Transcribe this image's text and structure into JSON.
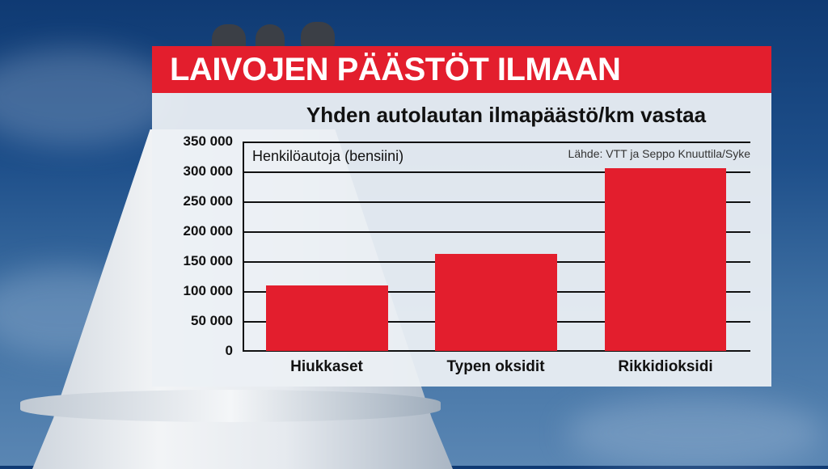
{
  "header": {
    "title": "LAIVOJEN PÄÄSTÖT ILMAAN"
  },
  "chart": {
    "subtitle": "Yhden autolautan ilmapäästö/km vastaa",
    "unit_label": "Henkilöautoja (bensiini)",
    "source": "Lähde: VTT ja Seppo Knuuttila/Syke",
    "bar_color": "#e31e2d",
    "y_ticks": [
      "350 000",
      "300 000",
      "250 000",
      "200 000",
      "150 000",
      "100 000",
      "50 000",
      "0"
    ],
    "categories": [
      "Hiukkaset",
      "Typen oksidit",
      "Rikkidioksidi"
    ]
  },
  "colors": {
    "accent_red": "#e31e2d",
    "panel_bg": "#ecf0f4",
    "text": "#111111"
  },
  "chart_data": {
    "type": "bar",
    "title": "LAIVOJEN PÄÄSTÖT ILMAAN",
    "subtitle": "Yhden autolautan ilmapäästö/km vastaa",
    "xlabel": "",
    "ylabel": "Henkilöautoja (bensiini)",
    "categories": [
      "Hiukkaset",
      "Typen oksidit",
      "Rikkidioksidi"
    ],
    "values": [
      110000,
      162000,
      305000
    ],
    "ylim": [
      0,
      350000
    ],
    "yticks": [
      0,
      50000,
      100000,
      150000,
      200000,
      250000,
      300000,
      350000
    ],
    "grid": true,
    "legend": null,
    "annotations": [
      "Lähde: VTT ja Seppo Knuuttila/Syke"
    ]
  }
}
